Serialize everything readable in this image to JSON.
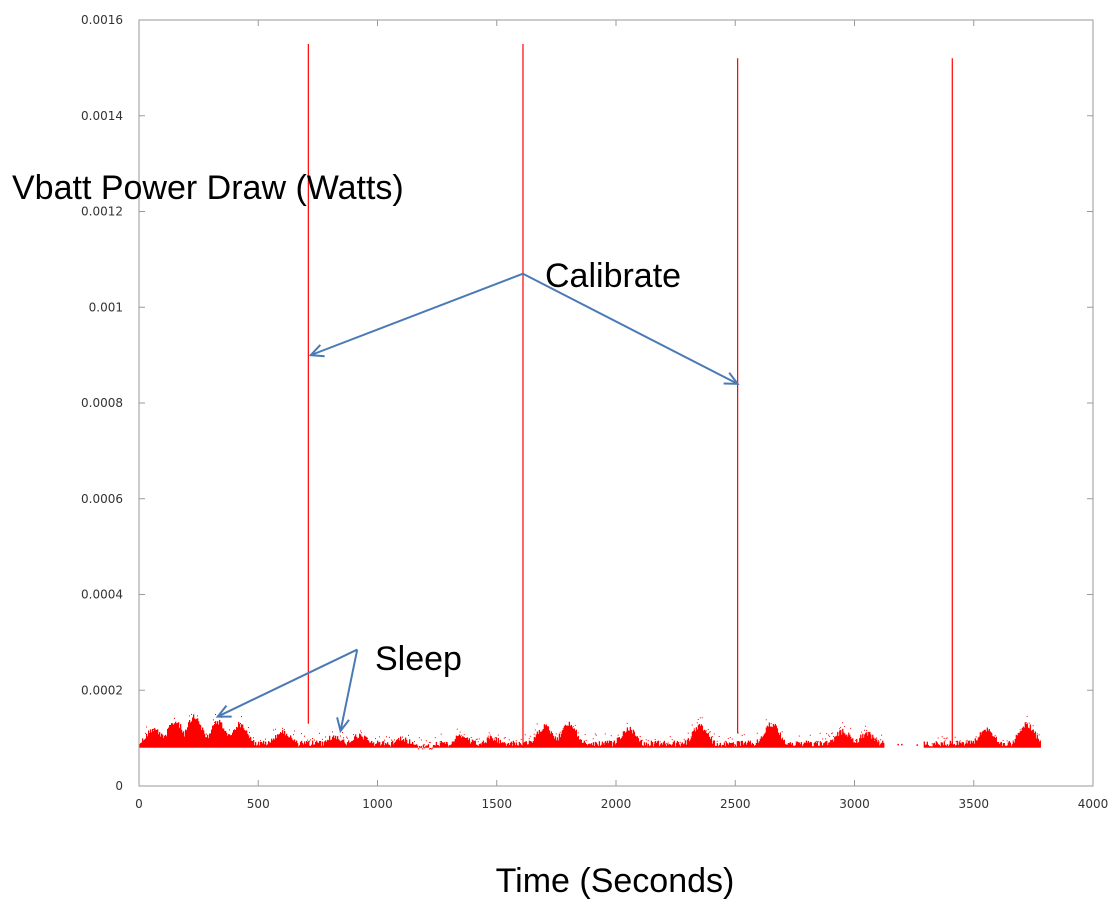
{
  "chart_data": {
    "type": "scatter",
    "ylabel": "Vbatt Power Draw (Watts)",
    "xlabel": "Time (Seconds)",
    "xlim": [
      0,
      4000
    ],
    "ylim": [
      0,
      0.0016
    ],
    "x_ticks": [
      "0",
      "500",
      "1000",
      "1500",
      "2000",
      "2500",
      "3000",
      "3500",
      "4000"
    ],
    "y_ticks": [
      "0",
      "0.0002",
      "0.0004",
      "0.0006",
      "0.0008",
      "0.001",
      "0.0012",
      "0.0014",
      "0.0016"
    ],
    "grid": false,
    "marker_color": "#ff0000",
    "calibration_spikes": [
      {
        "x": 710,
        "y_min": 0.00013,
        "y_max": 0.00155
      },
      {
        "x": 1610,
        "y_min": 8e-05,
        "y_max": 0.00155
      },
      {
        "x": 2510,
        "y_min": 0.00011,
        "y_max": 0.00152
      },
      {
        "x": 3410,
        "y_min": 9e-05,
        "y_max": 0.00152
      }
    ],
    "baseline_segments": [
      {
        "x_start": 0,
        "x_end": 1165,
        "y_min": 8e-05,
        "y_max": 0.00015
      },
      {
        "x_start": 1165,
        "x_end": 1240,
        "y_min": 8e-05,
        "y_max": 9e-05
      },
      {
        "x_start": 1240,
        "x_end": 2860,
        "y_min": 8e-05,
        "y_max": 0.00014
      },
      {
        "x_start": 2860,
        "x_end": 3120,
        "y_min": 8e-05,
        "y_max": 0.00012
      },
      {
        "x_start": 3290,
        "x_end": 3780,
        "y_min": 8e-05,
        "y_max": 0.00014
      }
    ],
    "bump_peaks": [
      {
        "x": 60,
        "y": 0.000125
      },
      {
        "x": 150,
        "y": 0.00014
      },
      {
        "x": 230,
        "y": 0.00015
      },
      {
        "x": 330,
        "y": 0.00014
      },
      {
        "x": 420,
        "y": 0.000135
      },
      {
        "x": 600,
        "y": 0.00012
      },
      {
        "x": 820,
        "y": 0.00011
      },
      {
        "x": 920,
        "y": 0.00011
      },
      {
        "x": 1100,
        "y": 0.000105
      },
      {
        "x": 1350,
        "y": 0.00011
      },
      {
        "x": 1480,
        "y": 0.000105
      },
      {
        "x": 1700,
        "y": 0.00013
      },
      {
        "x": 1800,
        "y": 0.000135
      },
      {
        "x": 2050,
        "y": 0.000125
      },
      {
        "x": 2350,
        "y": 0.00013
      },
      {
        "x": 2650,
        "y": 0.000135
      },
      {
        "x": 2950,
        "y": 0.00012
      },
      {
        "x": 3050,
        "y": 0.000115
      },
      {
        "x": 3550,
        "y": 0.000125
      },
      {
        "x": 3720,
        "y": 0.000135
      }
    ],
    "annotations": [
      {
        "text": "Calibrate",
        "x": 1700,
        "y": 0.00107,
        "points_to": [
          {
            "x": 720,
            "y": 0.0009
          },
          {
            "x": 2510,
            "y": 0.00084
          }
        ],
        "arrow_origin": {
          "x": 1610,
          "y": 0.00107
        }
      },
      {
        "text": "Sleep",
        "x": 1010,
        "y": 0.00027,
        "points_to": [
          {
            "x": 330,
            "y": 0.000145
          },
          {
            "x": 845,
            "y": 0.000115
          }
        ],
        "arrow_origin": {
          "x": 915,
          "y": 0.000285
        }
      }
    ],
    "arrow_color": "#4a7ab5"
  }
}
